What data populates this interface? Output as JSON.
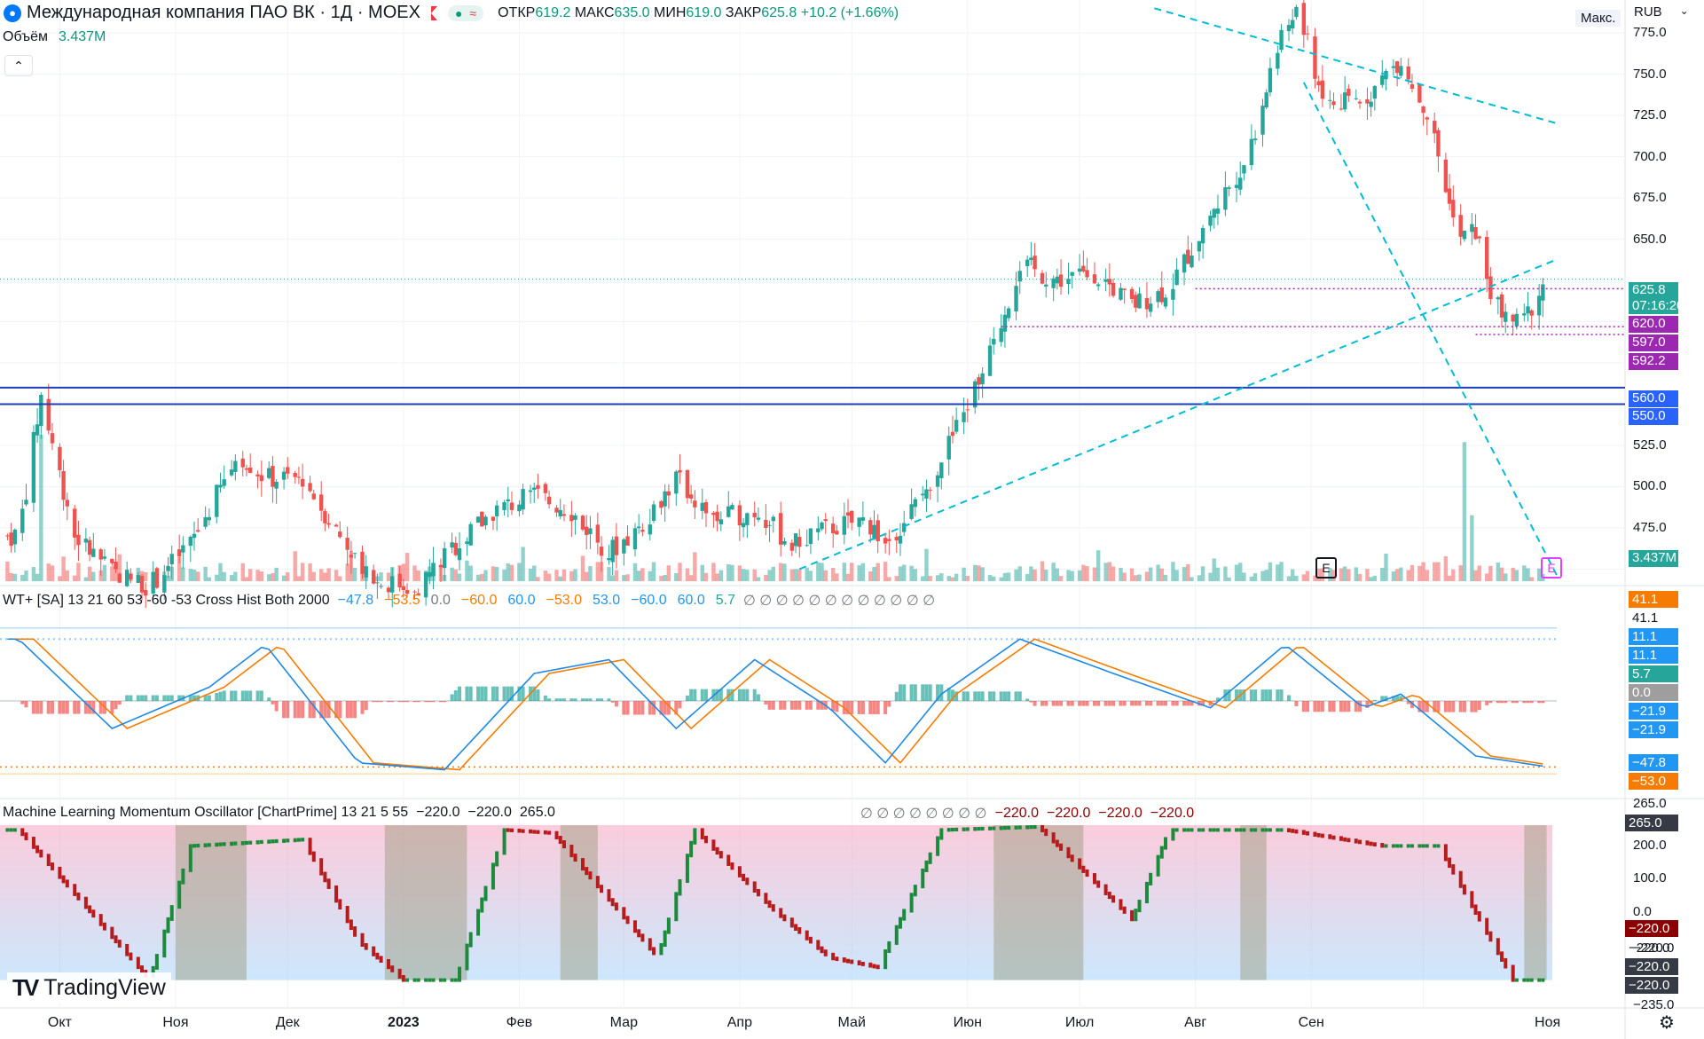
{
  "header": {
    "title": "Международная компания ПАО ВК · 1Д · MOEX",
    "open_label": "ОТКР",
    "open": "619.2",
    "high_label": "МАКС",
    "high": "635.0",
    "low_label": "МИН",
    "low": "619.0",
    "close_label": "ЗАКР",
    "close": "625.8",
    "change": "+10.2 (+1.66%)",
    "volume_label": "Объём",
    "volume": "3.437M",
    "currency": "RUB",
    "max_button": "Макс."
  },
  "price_axis": {
    "ticks": [
      "775.0",
      "750.0",
      "725.0",
      "700.0",
      "675.0",
      "650.0",
      "525.0",
      "500.0",
      "475.0"
    ],
    "tags": [
      {
        "text": "625.8",
        "sub": "07:16:20",
        "color": "#26a69a"
      },
      {
        "text": "620.0",
        "color": "#9c27b0"
      },
      {
        "text": "597.0",
        "color": "#9c27b0"
      },
      {
        "text": "592.2",
        "color": "#9c27b0"
      },
      {
        "text": "560.0",
        "color": "#2962ff"
      },
      {
        "text": "550.0",
        "color": "#2962ff"
      },
      {
        "text": "3.437M",
        "color": "#26a69a"
      }
    ]
  },
  "wt_legend": {
    "name": "WT+ [SA] 13 21 60 53 -60 -53 Cross Hist Both 2000",
    "values": [
      "−47.8",
      "−53.5",
      "0.0",
      "−60.0",
      "60.0",
      "−53.0",
      "53.0",
      "−60.0",
      "60.0",
      "5.7"
    ],
    "value_colors": [
      "#2196f3",
      "#f57c00",
      "#787b86",
      "#f57c00",
      "#2196f3",
      "#f57c00",
      "#2196f3",
      "#2196f3",
      "#2196f3",
      "#26a69a"
    ],
    "empties": "∅ ∅ ∅ ∅ ∅ ∅ ∅ ∅ ∅ ∅ ∅ ∅"
  },
  "wt_axis": {
    "tags": [
      {
        "text": "41.1",
        "color": "#f57c00"
      },
      {
        "text": "41.1",
        "color": ""
      },
      {
        "text": "11.1",
        "color": "#2196f3"
      },
      {
        "text": "11.1",
        "color": "#2196f3"
      },
      {
        "text": "5.7",
        "color": "#26a69a"
      },
      {
        "text": "0.0",
        "color": "#9e9e9e"
      },
      {
        "text": "−21.9",
        "color": "#2196f3"
      },
      {
        "text": "−21.9",
        "color": "#2196f3"
      },
      {
        "text": "−47.8",
        "color": "#2196f3"
      },
      {
        "text": "−53.0",
        "color": "#f57c00"
      }
    ]
  },
  "ml_legend": {
    "name": "Machine Learning Momentum Oscillator [ChartPrime] 13 21 5 55",
    "values": [
      "−220.0",
      "−220.0",
      "265.0"
    ],
    "empties": "∅ ∅ ∅ ∅ ∅ ∅ ∅ ∅",
    "tail": [
      "−220.0",
      "−220.0",
      "−220.0",
      "−220.0"
    ]
  },
  "ml_axis": {
    "ticks": [
      "265.0",
      "200.0",
      "100.0",
      "0.0",
      "−220.0",
      "−235.0"
    ],
    "tags": [
      {
        "text": "265.0",
        "color": "#363a45"
      },
      {
        "text": "−220.0",
        "color": "#8b0000"
      },
      {
        "text": "−220.0",
        "color": ""
      },
      {
        "text": "−220.0",
        "color": "#363a45"
      },
      {
        "text": "−220.0",
        "color": "#363a45"
      }
    ]
  },
  "time_axis": [
    "Окт",
    "Ноя",
    "Дек",
    "2023",
    "Фев",
    "Мар",
    "Апр",
    "Май",
    "Июн",
    "Июл",
    "Авг",
    "Сен",
    "Ноя"
  ],
  "watermark": "TradingView",
  "earnings_markers": [
    "E",
    "E"
  ],
  "colors": {
    "up": "#26a69a",
    "down": "#ef5350",
    "trend": "#00bcd4",
    "hline": "#1e3fb4"
  },
  "chart_data": [
    {
      "type": "candlestick",
      "title": "Международная компания ПАО ВК · 1Д · MOEX",
      "y_range": [
        440,
        795
      ],
      "x_range": [
        "2022-09-15",
        "2023-11-05"
      ],
      "last": {
        "open": 619.2,
        "high": 635.0,
        "low": 619.0,
        "close": 625.8,
        "change": 10.2,
        "change_pct": 1.66
      },
      "horizontal_levels": [
        560.0,
        550.0,
        620.0,
        597.0,
        592.2
      ],
      "trend_lines": [
        {
          "from": [
            "2023-07-21",
            790
          ],
          "to": [
            "2023-11-06",
            720
          ]
        },
        {
          "from": [
            "2023-04-17",
            450
          ],
          "to": [
            "2023-11-06",
            638
          ]
        },
        {
          "from": [
            "2023-08-30",
            745
          ],
          "to": [
            "2023-11-06",
            445
          ]
        }
      ],
      "path": [
        [
          "2022-09-20",
          470
        ],
        [
          "2022-09-26",
          555
        ],
        [
          "2022-10-05",
          470
        ],
        [
          "2022-10-15",
          448
        ],
        [
          "2022-10-25",
          440
        ],
        [
          "2022-11-05",
          465
        ],
        [
          "2022-11-18",
          520
        ],
        [
          "2022-11-25",
          505
        ],
        [
          "2022-12-05",
          505
        ],
        [
          "2022-12-15",
          470
        ],
        [
          "2022-12-25",
          442
        ],
        [
          "2023-01-05",
          440
        ],
        [
          "2023-01-13",
          460
        ],
        [
          "2023-01-25",
          485
        ],
        [
          "2023-02-05",
          495
        ],
        [
          "2023-02-15",
          485
        ],
        [
          "2023-02-25",
          460
        ],
        [
          "2023-03-05",
          475
        ],
        [
          "2023-03-15",
          505
        ],
        [
          "2023-03-25",
          480
        ],
        [
          "2023-04-05",
          485
        ],
        [
          "2023-04-15",
          465
        ],
        [
          "2023-04-25",
          475
        ],
        [
          "2023-05-05",
          480
        ],
        [
          "2023-05-10",
          465
        ],
        [
          "2023-05-20",
          495
        ],
        [
          "2023-05-30",
          540
        ],
        [
          "2023-06-08",
          585
        ],
        [
          "2023-06-15",
          635
        ],
        [
          "2023-06-25",
          625
        ],
        [
          "2023-07-05",
          630
        ],
        [
          "2023-07-15",
          610
        ],
        [
          "2023-07-25",
          620
        ],
        [
          "2023-08-05",
          665
        ],
        [
          "2023-08-15",
          700
        ],
        [
          "2023-08-22",
          760
        ],
        [
          "2023-08-28",
          790
        ],
        [
          "2023-09-05",
          730
        ],
        [
          "2023-09-15",
          735
        ],
        [
          "2023-09-25",
          760
        ],
        [
          "2023-10-03",
          720
        ],
        [
          "2023-10-10",
          650
        ],
        [
          "2023-10-15",
          655
        ],
        [
          "2023-10-20",
          610
        ],
        [
          "2023-10-27",
          597
        ],
        [
          "2023-11-03",
          625.8
        ]
      ]
    },
    {
      "type": "histogram",
      "name": "Объём",
      "last_value": "3.437M",
      "spikes": [
        [
          "2022-09-26",
          1.0
        ],
        [
          "2023-10-12",
          0.95
        ],
        [
          "2023-10-14",
          0.45
        ]
      ]
    },
    {
      "type": "line",
      "name": "WT+ [SA] 13 21 60 53 -60 -53 Cross Hist Both 2000",
      "y_range": [
        -60,
        60
      ],
      "levels": [
        53,
        60,
        -53,
        -60
      ],
      "series_wt1_path": [
        [
          "2022-09-20",
          45
        ],
        [
          "2022-10-15",
          -20
        ],
        [
          "2022-11-10",
          10
        ],
        [
          "2022-11-25",
          41
        ],
        [
          "2022-12-20",
          -45
        ],
        [
          "2023-01-12",
          -50
        ],
        [
          "2023-02-05",
          20
        ],
        [
          "2023-02-25",
          30
        ],
        [
          "2023-03-15",
          -20
        ],
        [
          "2023-04-05",
          30
        ],
        [
          "2023-04-25",
          -5
        ],
        [
          "2023-05-10",
          -45
        ],
        [
          "2023-05-25",
          5
        ],
        [
          "2023-06-15",
          45
        ],
        [
          "2023-07-10",
          20
        ],
        [
          "2023-08-05",
          -5
        ],
        [
          "2023-08-25",
          41
        ],
        [
          "2023-09-15",
          -5
        ],
        [
          "2023-09-25",
          5
        ],
        [
          "2023-10-15",
          -40
        ],
        [
          "2023-11-03",
          -47.8
        ]
      ],
      "series_wt2_last": -53.5
    },
    {
      "type": "bar",
      "name": "Machine Learning Momentum Oscillator [ChartPrime] 13 21 5 55",
      "y_range": [
        -235,
        265
      ],
      "last_value": -220.0,
      "path": [
        [
          "2022-09-20",
          250
        ],
        [
          "2022-10-25",
          -220
        ],
        [
          "2022-11-05",
          200
        ],
        [
          "2022-12-05",
          220
        ],
        [
          "2022-12-20",
          -100
        ],
        [
          "2023-01-01",
          -220
        ],
        [
          "2023-01-15",
          -220
        ],
        [
          "2023-01-28",
          250
        ],
        [
          "2023-02-10",
          240
        ],
        [
          "2023-03-10",
          -150
        ],
        [
          "2023-03-20",
          250
        ],
        [
          "2023-04-10",
          0
        ],
        [
          "2023-04-25",
          -150
        ],
        [
          "2023-05-08",
          -180
        ],
        [
          "2023-05-25",
          250
        ],
        [
          "2023-06-20",
          260
        ],
        [
          "2023-07-15",
          -30
        ],
        [
          "2023-07-25",
          250
        ],
        [
          "2023-08-25",
          250
        ],
        [
          "2023-09-20",
          200
        ],
        [
          "2023-10-05",
          200
        ],
        [
          "2023-10-25",
          -220
        ],
        [
          "2023-11-03",
          -220
        ]
      ]
    }
  ]
}
